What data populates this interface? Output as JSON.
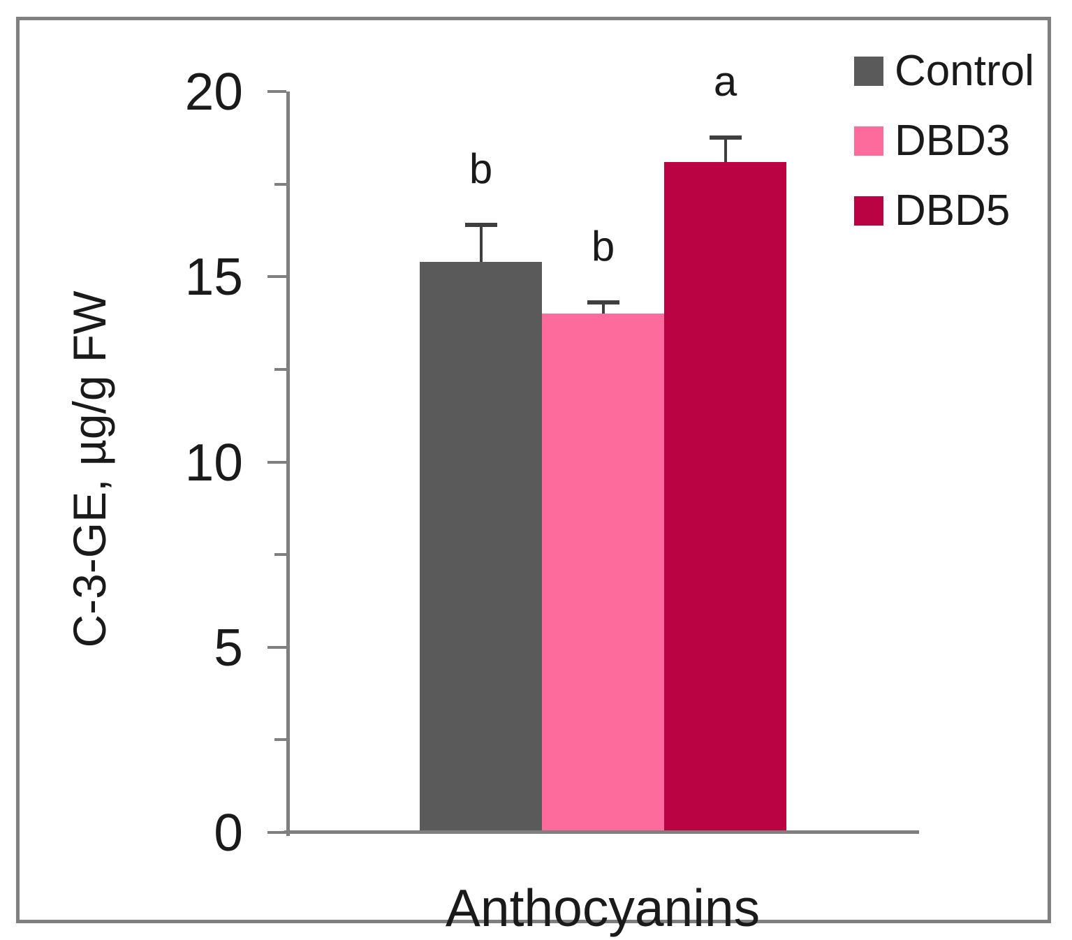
{
  "chart_data": {
    "type": "bar",
    "title": "",
    "xlabel": "Anthocyanins",
    "ylabel": "C-3-GE, µg/g FW",
    "ylim": [
      0,
      20
    ],
    "ytick_major": [
      0,
      5,
      10,
      15,
      20
    ],
    "ytick_minor": [
      2.5,
      7.5,
      12.5,
      17.5
    ],
    "grid": false,
    "legend_position": "top-right",
    "categories": [
      "Control",
      "DBD3",
      "DBD5"
    ],
    "values": [
      15.4,
      14.0,
      18.1
    ],
    "errors": [
      1.0,
      0.3,
      0.65
    ],
    "sig_letters": [
      "b",
      "b",
      "a"
    ],
    "bar_colors": [
      "#5a5a5a",
      "#fc6b9b",
      "#b90343"
    ],
    "legend": [
      {
        "label": "Control",
        "color": "#5a5a5a"
      },
      {
        "label": "DBD3",
        "color": "#fc6b9b"
      },
      {
        "label": "DBD5",
        "color": "#b90343"
      }
    ],
    "axis_color": "#7f7f7f",
    "error_bar_color": "#3f3f3f"
  }
}
